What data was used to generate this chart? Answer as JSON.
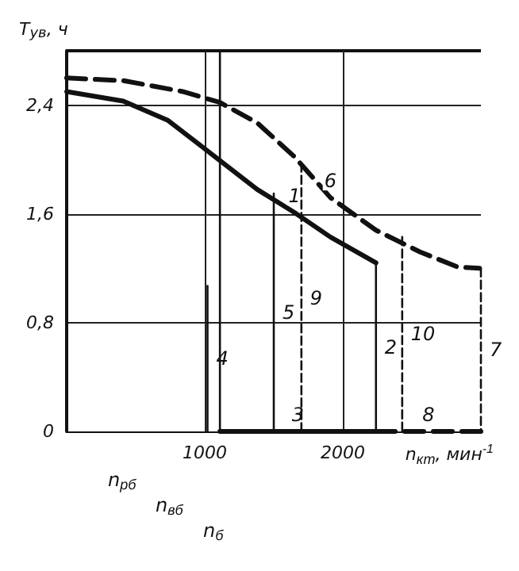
{
  "chart_data": {
    "type": "line",
    "xlabel": "n$_{кт}$, мин$^{-1}$",
    "ylabel": "T$_{ув}$, ч",
    "xlim": [
      0,
      3000
    ],
    "xticks": [
      1000,
      2000
    ],
    "ylim": [
      0,
      2.8
    ],
    "yticks": [
      {
        "value": 0,
        "label": "0"
      },
      {
        "value": 0.8,
        "label": "0,8"
      },
      {
        "value": 1.6,
        "label": "1,6"
      },
      {
        "value": 2.4,
        "label": "2,4"
      }
    ],
    "grid": true,
    "legend": false,
    "marker": "none",
    "series": [
      {
        "name": "1",
        "color": "#111111",
        "line_style": "solid",
        "x": [
          0,
          410,
          730,
          1050,
          1380,
          1650,
          1910,
          2240
        ],
        "values": [
          2.5,
          2.43,
          2.29,
          2.04,
          1.78,
          1.61,
          1.43,
          1.24
        ]
      },
      {
        "name": "6",
        "color": "#111111",
        "line_style": "dashed",
        "x": [
          0,
          410,
          840,
          1110,
          1380,
          1650,
          1910,
          2240,
          2560,
          2830,
          2990
        ],
        "values": [
          2.6,
          2.58,
          2.5,
          2.42,
          2.27,
          2.02,
          1.72,
          1.48,
          1.32,
          1.21,
          1.2
        ]
      },
      {
        "name": "4",
        "color": "#111111",
        "line_style": "solid",
        "x": [
          1020,
          1020
        ],
        "values": [
          0,
          1.07
        ]
      },
      {
        "color": "#111111",
        "line_style": "solid",
        "x": [
          1110,
          1110
        ],
        "values": [
          0,
          2.8
        ]
      },
      {
        "name": "3",
        "color": "#111111",
        "line_style": "solid",
        "x": [
          1110,
          2240
        ],
        "values": [
          0,
          0
        ]
      },
      {
        "name": "5",
        "color": "#111111",
        "line_style": "solid",
        "x": [
          1500,
          1500
        ],
        "values": [
          0,
          1.75
        ]
      },
      {
        "name": "9",
        "color": "#111111",
        "line_style": "dashed",
        "x": [
          1700,
          1700
        ],
        "values": [
          0,
          1.96
        ]
      },
      {
        "name": "2",
        "color": "#111111",
        "line_style": "solid",
        "x": [
          2240,
          2240
        ],
        "values": [
          1.24,
          0
        ]
      },
      {
        "name": "10",
        "color": "#111111",
        "line_style": "dashed",
        "x": [
          2430,
          2430
        ],
        "values": [
          1.43,
          0
        ]
      },
      {
        "name": "7",
        "color": "#111111",
        "line_style": "dashed",
        "x": [
          3000,
          3000
        ],
        "values": [
          1.2,
          0
        ]
      },
      {
        "name": "8",
        "color": "#111111",
        "line_style": "dashed",
        "x": [
          3000,
          2240
        ],
        "values": [
          0,
          0
        ]
      }
    ],
    "annotations": [
      "n$_{рб}$",
      "n$_{вб}$",
      "n$_{б}$"
    ]
  }
}
